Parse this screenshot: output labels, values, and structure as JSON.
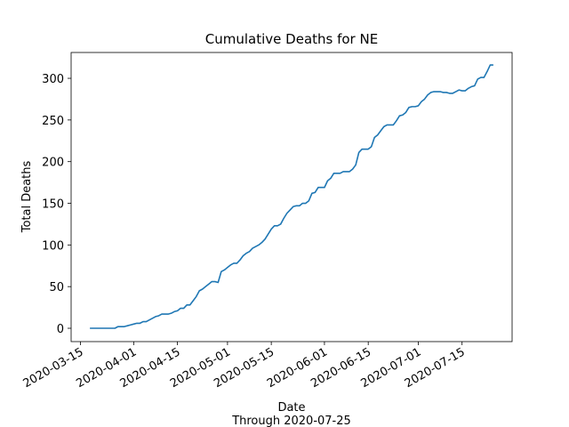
{
  "chart_data": {
    "type": "line",
    "title": "Cumulative Deaths for NE",
    "xlabel": "Date",
    "xlabel_note": "Through 2020-07-25",
    "ylabel": "Total Deaths",
    "color": "#1f77b4",
    "x": [
      "2020-03-18",
      "2020-03-19",
      "2020-03-20",
      "2020-03-21",
      "2020-03-22",
      "2020-03-23",
      "2020-03-24",
      "2020-03-25",
      "2020-03-26",
      "2020-03-27",
      "2020-03-28",
      "2020-03-29",
      "2020-03-30",
      "2020-03-31",
      "2020-04-01",
      "2020-04-02",
      "2020-04-03",
      "2020-04-04",
      "2020-04-05",
      "2020-04-06",
      "2020-04-07",
      "2020-04-08",
      "2020-04-09",
      "2020-04-10",
      "2020-04-11",
      "2020-04-12",
      "2020-04-13",
      "2020-04-14",
      "2020-04-15",
      "2020-04-16",
      "2020-04-17",
      "2020-04-18",
      "2020-04-19",
      "2020-04-20",
      "2020-04-21",
      "2020-04-22",
      "2020-04-23",
      "2020-04-24",
      "2020-04-25",
      "2020-04-26",
      "2020-04-27",
      "2020-04-28",
      "2020-04-29",
      "2020-04-30",
      "2020-05-01",
      "2020-05-02",
      "2020-05-03",
      "2020-05-04",
      "2020-05-05",
      "2020-05-06",
      "2020-05-07",
      "2020-05-08",
      "2020-05-09",
      "2020-05-10",
      "2020-05-11",
      "2020-05-12",
      "2020-05-13",
      "2020-05-14",
      "2020-05-15",
      "2020-05-16",
      "2020-05-17",
      "2020-05-18",
      "2020-05-19",
      "2020-05-20",
      "2020-05-21",
      "2020-05-22",
      "2020-05-23",
      "2020-05-24",
      "2020-05-25",
      "2020-05-26",
      "2020-05-27",
      "2020-05-28",
      "2020-05-29",
      "2020-05-30",
      "2020-05-31",
      "2020-06-01",
      "2020-06-02",
      "2020-06-03",
      "2020-06-04",
      "2020-06-05",
      "2020-06-06",
      "2020-06-07",
      "2020-06-08",
      "2020-06-09",
      "2020-06-10",
      "2020-06-11",
      "2020-06-12",
      "2020-06-13",
      "2020-06-14",
      "2020-06-15",
      "2020-06-16",
      "2020-06-17",
      "2020-06-18",
      "2020-06-19",
      "2020-06-20",
      "2020-06-21",
      "2020-06-22",
      "2020-06-23",
      "2020-06-24",
      "2020-06-25",
      "2020-06-26",
      "2020-06-27",
      "2020-06-28",
      "2020-06-29",
      "2020-06-30",
      "2020-07-01",
      "2020-07-02",
      "2020-07-03",
      "2020-07-04",
      "2020-07-05",
      "2020-07-06",
      "2020-07-07",
      "2020-07-08",
      "2020-07-09",
      "2020-07-10",
      "2020-07-11",
      "2020-07-12",
      "2020-07-13",
      "2020-07-14",
      "2020-07-15",
      "2020-07-16",
      "2020-07-17",
      "2020-07-18",
      "2020-07-19",
      "2020-07-20",
      "2020-07-21",
      "2020-07-22",
      "2020-07-23",
      "2020-07-24",
      "2020-07-25"
    ],
    "values": [
      0,
      0,
      0,
      0,
      0,
      0,
      0,
      0,
      0,
      2,
      2,
      2,
      3,
      4,
      5,
      6,
      6,
      8,
      8,
      10,
      12,
      14,
      15,
      17,
      17,
      17,
      18,
      20,
      21,
      24,
      24,
      28,
      28,
      33,
      38,
      45,
      47,
      50,
      53,
      56,
      56,
      55,
      68,
      70,
      73,
      76,
      78,
      78,
      82,
      87,
      90,
      92,
      96,
      98,
      100,
      103,
      107,
      113,
      119,
      123,
      123,
      125,
      132,
      138,
      142,
      146,
      147,
      147,
      150,
      150,
      153,
      162,
      163,
      169,
      169,
      169,
      177,
      180,
      186,
      186,
      186,
      188,
      188,
      188,
      191,
      196,
      211,
      215,
      215,
      215,
      218,
      229,
      232,
      237,
      242,
      244,
      244,
      244,
      249,
      255,
      256,
      259,
      265,
      266,
      266,
      267,
      272,
      275,
      280,
      283,
      284,
      284,
      284,
      283,
      283,
      282,
      282,
      284,
      286,
      285,
      285,
      288,
      290,
      291,
      299,
      301,
      301,
      308,
      316,
      316
    ],
    "xlim": [
      "2020-03-12",
      "2020-07-31"
    ],
    "xticks": [
      "2020-03-15",
      "2020-04-01",
      "2020-04-15",
      "2020-05-01",
      "2020-05-15",
      "2020-06-01",
      "2020-06-15",
      "2020-07-01",
      "2020-07-15"
    ],
    "ylim": [
      -16,
      331
    ],
    "yticks": [
      0,
      50,
      100,
      150,
      200,
      250,
      300
    ]
  }
}
